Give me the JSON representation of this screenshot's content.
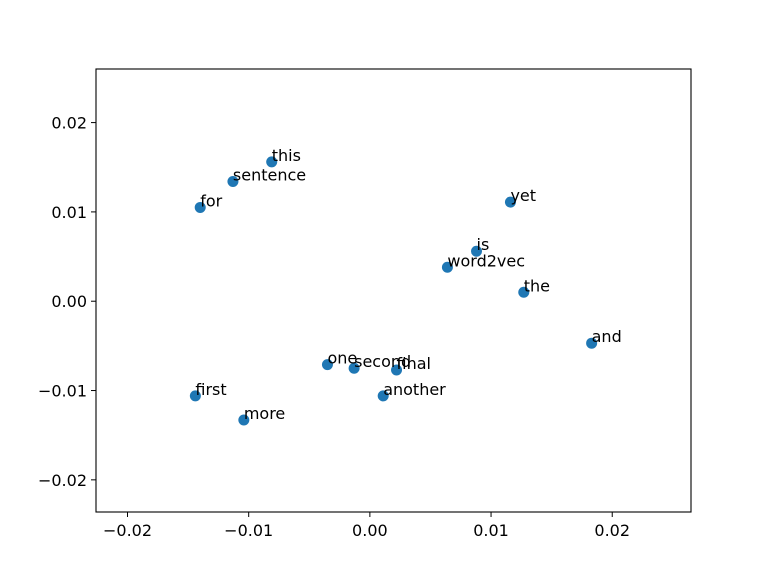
{
  "chart_data": {
    "type": "scatter",
    "title": "",
    "xlabel": "",
    "ylabel": "",
    "xlim": [
      -0.0226,
      0.0265
    ],
    "ylim": [
      -0.0236,
      0.026
    ],
    "grid": false,
    "legend": null,
    "marker_color": "#1f77b4",
    "x_ticks": [
      -0.02,
      -0.01,
      0.0,
      0.01,
      0.02
    ],
    "x_tick_labels": [
      "−0.02",
      "−0.01",
      "0.00",
      "0.01",
      "0.02"
    ],
    "y_ticks": [
      -0.02,
      -0.01,
      0.0,
      0.01,
      0.02
    ],
    "y_tick_labels": [
      "−0.02",
      "−0.01",
      "0.00",
      "0.01",
      "0.02"
    ],
    "points": [
      {
        "label": "this",
        "x": -0.0081,
        "y": 0.0156
      },
      {
        "label": "sentence",
        "x": -0.0113,
        "y": 0.0134
      },
      {
        "label": "for",
        "x": -0.014,
        "y": 0.0105
      },
      {
        "label": "yet",
        "x": 0.0116,
        "y": 0.0111
      },
      {
        "label": "is",
        "x": 0.0088,
        "y": 0.0056
      },
      {
        "label": "word2vec",
        "x": 0.0064,
        "y": 0.0038
      },
      {
        "label": "the",
        "x": 0.0127,
        "y": 0.001
      },
      {
        "label": "and",
        "x": 0.0183,
        "y": -0.0047
      },
      {
        "label": "one",
        "x": -0.0035,
        "y": -0.0071
      },
      {
        "label": "second",
        "x": -0.0013,
        "y": -0.0075
      },
      {
        "label": "final",
        "x": 0.0022,
        "y": -0.0077
      },
      {
        "label": "another",
        "x": 0.0011,
        "y": -0.0106
      },
      {
        "label": "first",
        "x": -0.0144,
        "y": -0.0106
      },
      {
        "label": "more",
        "x": -0.0104,
        "y": -0.0133
      }
    ]
  }
}
